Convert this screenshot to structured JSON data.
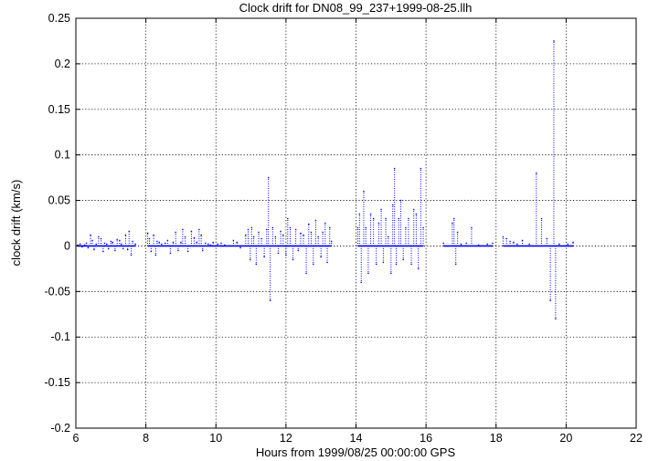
{
  "chart_data": {
    "type": "scatter",
    "title": "Clock drift for DN08_99_237+1999-08-25.llh",
    "xlabel": "Hours from 1999/08/25 00:00:00 GPS",
    "ylabel": "clock drift (km/s)",
    "xlim": [
      6,
      22
    ],
    "ylim": [
      -0.2,
      0.25
    ],
    "x_ticks": [
      "6",
      "8",
      "10",
      "12",
      "14",
      "16",
      "18",
      "20",
      "22"
    ],
    "y_ticks": [
      "-0.2",
      "-0.15",
      "-0.1",
      "-0.05",
      "0",
      "0.05",
      "0.1",
      "0.15",
      "0.2",
      "0.25"
    ],
    "grid": true,
    "legend": "none",
    "series": [
      {
        "color": "#0000ff",
        "x": [
          6.05,
          6.12,
          6.18,
          6.25,
          6.3,
          6.35,
          6.42,
          6.47,
          6.52,
          6.58,
          6.65,
          6.72,
          6.78,
          6.82,
          6.88,
          6.93,
          7.0,
          7.05,
          7.12,
          7.18,
          7.25,
          7.3,
          7.35,
          7.42,
          7.48,
          7.52,
          7.58,
          7.62,
          7.7,
          8.05,
          8.1,
          8.15,
          8.22,
          8.28,
          8.32,
          8.38,
          8.45,
          8.55,
          8.62,
          8.7,
          8.78,
          8.85,
          8.92,
          9.0,
          9.05,
          9.12,
          9.2,
          9.3,
          9.38,
          9.45,
          9.52,
          9.58,
          9.62,
          9.7,
          9.78,
          9.85,
          9.92,
          10.05,
          10.15,
          10.25,
          10.5,
          10.6,
          10.7,
          10.85,
          10.92,
          10.98,
          11.02,
          11.08,
          11.15,
          11.22,
          11.3,
          11.38,
          11.45,
          11.5,
          11.55,
          11.62,
          11.7,
          11.78,
          11.85,
          11.92,
          12.0,
          12.05,
          12.12,
          12.2,
          12.28,
          12.35,
          12.42,
          12.5,
          12.58,
          12.65,
          12.72,
          12.78,
          12.85,
          12.92,
          13.0,
          13.05,
          13.12,
          13.18,
          13.25,
          13.3,
          14.05,
          14.1,
          14.15,
          14.22,
          14.28,
          14.35,
          14.42,
          14.5,
          14.58,
          14.65,
          14.72,
          14.78,
          14.85,
          14.92,
          15.0,
          15.05,
          15.1,
          15.15,
          15.22,
          15.28,
          15.35,
          15.42,
          15.5,
          15.58,
          15.65,
          15.72,
          15.78,
          15.85,
          15.92,
          16.5,
          16.75,
          16.8,
          16.85,
          16.9,
          17.0,
          17.15,
          17.3,
          17.5,
          17.75,
          17.9,
          18.2,
          18.3,
          18.4,
          18.5,
          18.6,
          18.75,
          18.95,
          19.15,
          19.3,
          19.45,
          19.55,
          19.65,
          19.7,
          19.8,
          20.05,
          20.2
        ],
        "y": [
          0.001,
          0.002,
          -0.001,
          0.001,
          0.003,
          -0.002,
          0.012,
          0.006,
          -0.004,
          0.002,
          0.01,
          0.008,
          -0.006,
          0.003,
          0.002,
          -0.003,
          0.005,
          0.004,
          -0.005,
          0.007,
          0.006,
          0.002,
          -0.003,
          0.012,
          -0.004,
          0.016,
          -0.01,
          0.005,
          0.002,
          0.014,
          0.008,
          -0.006,
          0.012,
          -0.01,
          0.005,
          0.004,
          0.002,
          0.003,
          0.006,
          -0.008,
          0.004,
          0.015,
          -0.005,
          0.004,
          0.018,
          0.01,
          -0.006,
          0.016,
          0.009,
          0.004,
          0.018,
          0.012,
          -0.005,
          0.003,
          0.002,
          0.001,
          0.004,
          0.002,
          0.003,
          0.001,
          0.006,
          0.004,
          -0.002,
          0.012,
          0.018,
          -0.015,
          0.02,
          0.01,
          -0.02,
          0.015,
          0.008,
          -0.012,
          0.018,
          0.075,
          -0.06,
          0.02,
          0.01,
          -0.008,
          0.016,
          0.012,
          -0.01,
          0.03,
          0.02,
          -0.015,
          0.018,
          -0.005,
          0.014,
          0.012,
          -0.03,
          0.024,
          0.015,
          -0.02,
          0.028,
          0.01,
          -0.012,
          0.015,
          0.025,
          -0.018,
          0.02,
          0.005,
          0.02,
          0.035,
          -0.04,
          0.06,
          0.02,
          -0.03,
          0.035,
          0.03,
          -0.02,
          0.025,
          0.04,
          -0.018,
          0.03,
          0.01,
          -0.03,
          0.045,
          0.085,
          -0.02,
          0.03,
          0.05,
          -0.015,
          0.02,
          0.03,
          -0.02,
          0.04,
          0.035,
          -0.025,
          0.085,
          0.02,
          0.003,
          0.025,
          0.03,
          -0.02,
          0.015,
          0.002,
          0.003,
          0.02,
          0.001,
          0.002,
          0.003,
          0.01,
          0.008,
          0.005,
          0.004,
          0.002,
          0.006,
          0.002,
          0.08,
          0.03,
          0.008,
          -0.06,
          0.225,
          -0.08,
          0.002,
          0.002,
          0.004
        ]
      }
    ]
  }
}
